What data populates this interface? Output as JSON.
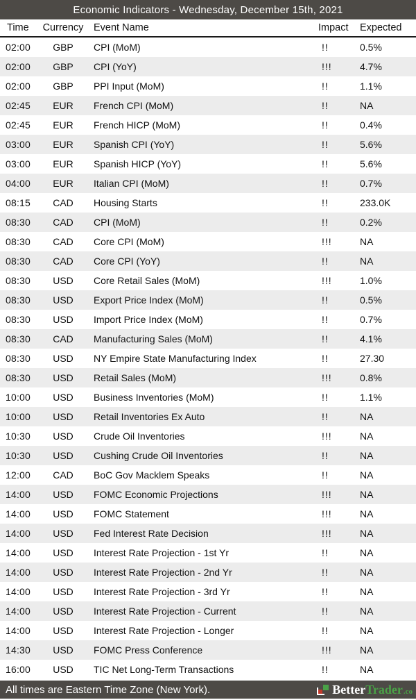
{
  "title": "Economic Indicators - Wednesday, December 15th, 2021",
  "columns": {
    "time": "Time",
    "currency": "Currency",
    "event": "Event Name",
    "impact": "Impact",
    "expected": "Expected"
  },
  "rows": [
    {
      "time": "02:00",
      "currency": "GBP",
      "event": "CPI (MoM)",
      "impact": "!!",
      "expected": "0.5%"
    },
    {
      "time": "02:00",
      "currency": "GBP",
      "event": "CPI (YoY)",
      "impact": "!!!",
      "expected": "4.7%"
    },
    {
      "time": "02:00",
      "currency": "GBP",
      "event": "PPI Input (MoM)",
      "impact": "!!",
      "expected": "1.1%"
    },
    {
      "time": "02:45",
      "currency": "EUR",
      "event": "French CPI (MoM)",
      "impact": "!!",
      "expected": "NA"
    },
    {
      "time": "02:45",
      "currency": "EUR",
      "event": "French HICP (MoM)",
      "impact": "!!",
      "expected": "0.4%"
    },
    {
      "time": "03:00",
      "currency": "EUR",
      "event": "Spanish CPI (YoY)",
      "impact": "!!",
      "expected": "5.6%"
    },
    {
      "time": "03:00",
      "currency": "EUR",
      "event": "Spanish HICP (YoY)",
      "impact": "!!",
      "expected": "5.6%"
    },
    {
      "time": "04:00",
      "currency": "EUR",
      "event": "Italian CPI (MoM)",
      "impact": "!!",
      "expected": "0.7%"
    },
    {
      "time": "08:15",
      "currency": "CAD",
      "event": "Housing Starts",
      "impact": "!!",
      "expected": "233.0K"
    },
    {
      "time": "08:30",
      "currency": "CAD",
      "event": "CPI (MoM)",
      "impact": "!!",
      "expected": "0.2%"
    },
    {
      "time": "08:30",
      "currency": "CAD",
      "event": "Core CPI (MoM)",
      "impact": "!!!",
      "expected": "NA"
    },
    {
      "time": "08:30",
      "currency": "CAD",
      "event": "Core CPI (YoY)",
      "impact": "!!",
      "expected": "NA"
    },
    {
      "time": "08:30",
      "currency": "USD",
      "event": "Core Retail Sales (MoM)",
      "impact": "!!!",
      "expected": "1.0%"
    },
    {
      "time": "08:30",
      "currency": "USD",
      "event": "Export Price Index (MoM)",
      "impact": "!!",
      "expected": "0.5%"
    },
    {
      "time": "08:30",
      "currency": "USD",
      "event": "Import Price Index (MoM)",
      "impact": "!!",
      "expected": "0.7%"
    },
    {
      "time": "08:30",
      "currency": "CAD",
      "event": "Manufacturing Sales (MoM)",
      "impact": "!!",
      "expected": "4.1%"
    },
    {
      "time": "08:30",
      "currency": "USD",
      "event": "NY Empire State Manufacturing Index",
      "impact": "!!",
      "expected": "27.30"
    },
    {
      "time": "08:30",
      "currency": "USD",
      "event": "Retail Sales (MoM)",
      "impact": "!!!",
      "expected": "0.8%"
    },
    {
      "time": "10:00",
      "currency": "USD",
      "event": "Business Inventories (MoM)",
      "impact": "!!",
      "expected": "1.1%"
    },
    {
      "time": "10:00",
      "currency": "USD",
      "event": "Retail Inventories Ex Auto",
      "impact": "!!",
      "expected": "NA"
    },
    {
      "time": "10:30",
      "currency": "USD",
      "event": "Crude Oil Inventories",
      "impact": "!!!",
      "expected": "NA"
    },
    {
      "time": "10:30",
      "currency": "USD",
      "event": "Cushing Crude Oil Inventories",
      "impact": "!!",
      "expected": "NA"
    },
    {
      "time": "12:00",
      "currency": "CAD",
      "event": "BoC Gov Macklem Speaks",
      "impact": "!!",
      "expected": "NA"
    },
    {
      "time": "14:00",
      "currency": "USD",
      "event": "FOMC Economic Projections",
      "impact": "!!!",
      "expected": "NA"
    },
    {
      "time": "14:00",
      "currency": "USD",
      "event": "FOMC Statement",
      "impact": "!!!",
      "expected": "NA"
    },
    {
      "time": "14:00",
      "currency": "USD",
      "event": "Fed Interest Rate Decision",
      "impact": "!!!",
      "expected": "NA"
    },
    {
      "time": "14:00",
      "currency": "USD",
      "event": "Interest Rate Projection - 1st Yr",
      "impact": "!!",
      "expected": "NA"
    },
    {
      "time": "14:00",
      "currency": "USD",
      "event": "Interest Rate Projection - 2nd Yr",
      "impact": "!!",
      "expected": "NA"
    },
    {
      "time": "14:00",
      "currency": "USD",
      "event": "Interest Rate Projection - 3rd Yr",
      "impact": "!!",
      "expected": "NA"
    },
    {
      "time": "14:00",
      "currency": "USD",
      "event": "Interest Rate Projection - Current",
      "impact": "!!",
      "expected": "NA"
    },
    {
      "time": "14:00",
      "currency": "USD",
      "event": "Interest Rate Projection - Longer",
      "impact": "!!",
      "expected": "NA"
    },
    {
      "time": "14:30",
      "currency": "USD",
      "event": "FOMC Press Conference",
      "impact": "!!!",
      "expected": "NA"
    },
    {
      "time": "16:00",
      "currency": "USD",
      "event": "TIC Net Long-Term Transactions",
      "impact": "!!",
      "expected": "NA"
    }
  ],
  "footer": {
    "note": "All times are Eastern Time Zone (New York).",
    "brand_left": "Better",
    "brand_right": "Trader",
    "brand_tld": ".co"
  },
  "colors": {
    "bar": "#4d4a46",
    "row_alt": "#ececec",
    "brand_green": "#4aa147",
    "brand_red": "#c0392b"
  }
}
